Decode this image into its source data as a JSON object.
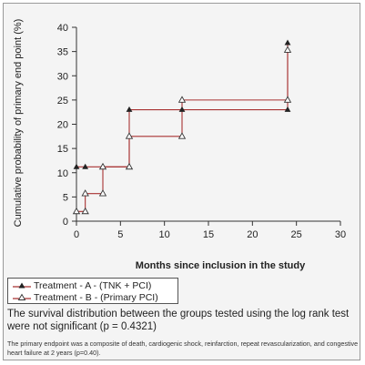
{
  "chart_data": {
    "type": "line",
    "step": true,
    "title": "",
    "xlabel": "Months since inclusion in the study",
    "ylabel": "Cumulative probability of primary end point (%)",
    "xlim": [
      0,
      30
    ],
    "ylim": [
      0,
      40
    ],
    "x_ticks": [
      "0",
      "5",
      "10",
      "15",
      "20",
      "25",
      "30"
    ],
    "y_ticks": [
      "0",
      "5",
      "10",
      "15",
      "20",
      "25",
      "30",
      "35",
      "40"
    ],
    "grid": false,
    "legend_position": "bottom-left",
    "series": [
      {
        "name": "Treatment - A - (TNK + PCI)",
        "marker": "filled-triangle",
        "color": "#a83232",
        "points": [
          [
            0,
            11.2
          ],
          [
            1,
            11.2
          ],
          [
            3,
            11.2
          ],
          [
            6,
            11.2
          ],
          [
            6,
            23
          ],
          [
            12,
            23
          ],
          [
            24,
            23
          ],
          [
            24,
            36.8
          ]
        ]
      },
      {
        "name": "Treatment - B - (Primary PCI)",
        "marker": "open-triangle",
        "color": "#a83232",
        "points": [
          [
            0,
            2
          ],
          [
            1,
            2
          ],
          [
            1,
            5.7
          ],
          [
            3,
            5.7
          ],
          [
            3,
            11.2
          ],
          [
            6,
            11.2
          ],
          [
            6,
            17.5
          ],
          [
            12,
            17.5
          ],
          [
            12,
            25
          ],
          [
            24,
            25
          ],
          [
            24,
            35.3
          ]
        ]
      }
    ]
  },
  "legend": {
    "series_a": "Treatment - A - (TNK + PCI)",
    "series_b": "Treatment - B - (Primary PCI)"
  },
  "caption": "The survival distribution between the groups tested using the log rank test were not significant (p = 0.4321)",
  "footnote": "The primary endpoint was a composite of death, cardiogenic shock, reinfarction, repeat revascularization, and congestive heart failure at 2 years (p=0.40)."
}
